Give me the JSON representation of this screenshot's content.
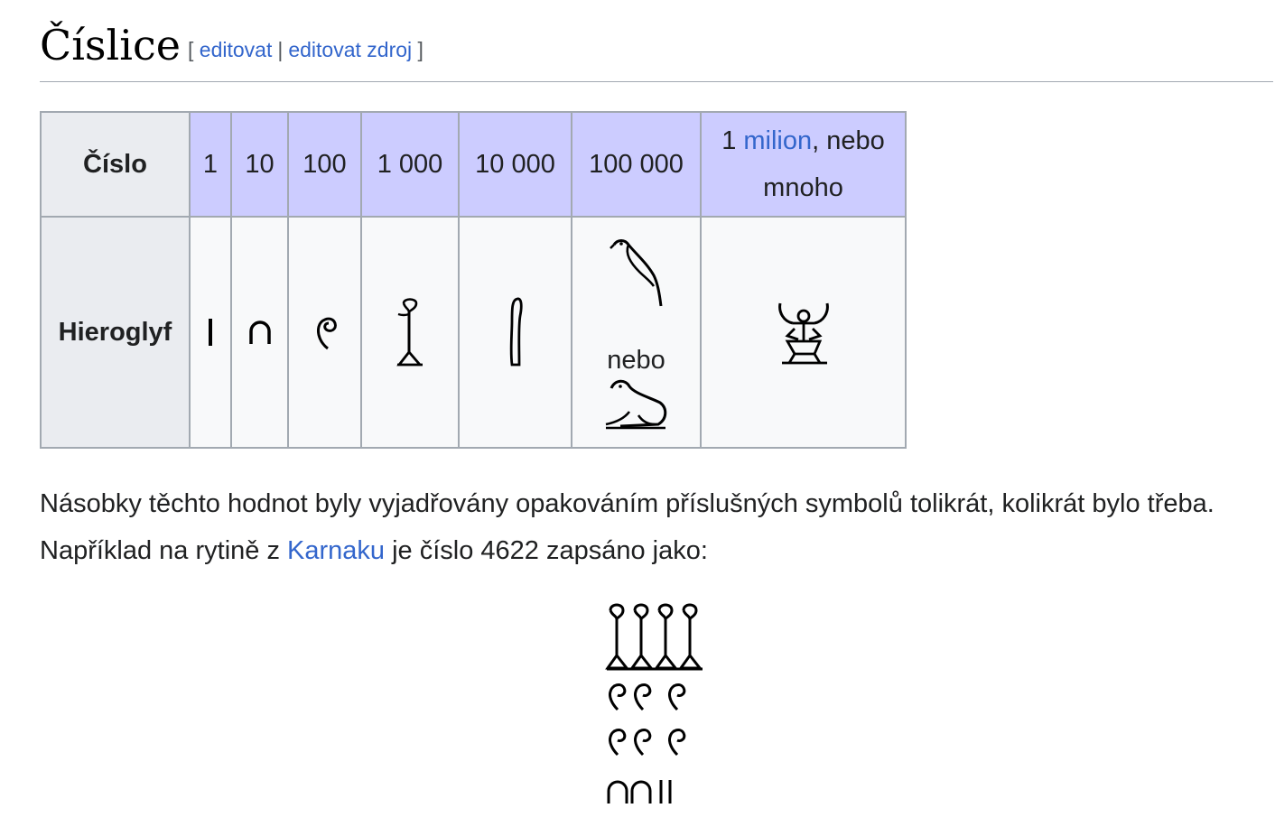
{
  "heading": {
    "title": "Číslice",
    "bracket_open": "[",
    "edit_link": "editovat",
    "divider": "|",
    "edit_source_link": "editovat zdroj",
    "bracket_close": "]"
  },
  "table": {
    "row_header_number": "Číslo",
    "row_header_glyph": "Hieroglyf",
    "columns": [
      "1",
      "10",
      "100",
      "1 000",
      "10 000",
      "100 000"
    ],
    "last_column": {
      "prefix": "1 ",
      "link": "milion",
      "suffix": ", nebo mnoho"
    },
    "glyph_icons": [
      "stroke-icon",
      "heel-bone-icon",
      "coil-of-rope-icon",
      "lotus-flower-icon",
      "finger-icon",
      "bird-icon",
      "tadpole-icon",
      "kneeling-god-heh-icon"
    ],
    "or_text": "nebo"
  },
  "paragraph": {
    "text_before": "Násobky těchto hodnot byly vyjadřovány opakováním příslušných symbolů tolikrát, kolikrát bylo třeba. Například na rytině z ",
    "link": "Karnaku",
    "text_after": " je číslo 4622 zapsáno jako:"
  },
  "colors": {
    "link": "#3366cc",
    "header_bg": "#ccccff",
    "rowhead_bg": "#eaecf0",
    "cell_bg": "#f8f9fa",
    "border": "#a2a9b1"
  }
}
